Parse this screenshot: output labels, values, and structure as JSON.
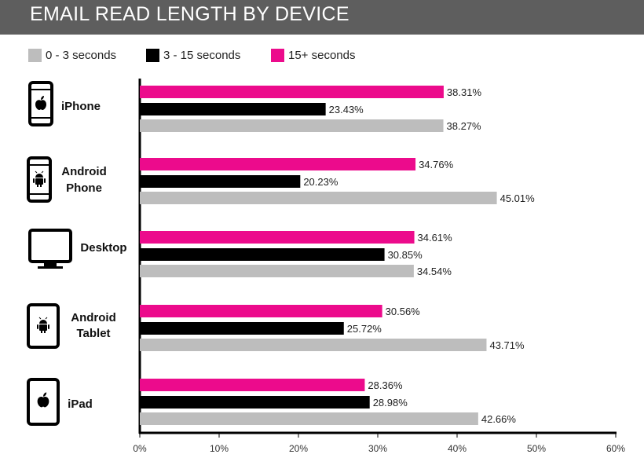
{
  "header": {
    "title": "EMAIL READ LENGTH BY DEVICE"
  },
  "colors": {
    "header_bg": "#5e5e5e",
    "series_0_3": "#bdbdbd",
    "series_3_15": "#000000",
    "series_15plus": "#ec0b8c"
  },
  "chart_data": {
    "type": "bar",
    "orientation": "horizontal",
    "title": "EMAIL READ LENGTH BY DEVICE",
    "categories": [
      {
        "lines": [
          "iPhone"
        ],
        "icon": "iphone-icon"
      },
      {
        "lines": [
          "Android",
          "Phone"
        ],
        "icon": "android-phone-icon"
      },
      {
        "lines": [
          "Desktop"
        ],
        "icon": "desktop-monitor-icon"
      },
      {
        "lines": [
          "Android",
          "Tablet"
        ],
        "icon": "android-tablet-icon"
      },
      {
        "lines": [
          "iPad"
        ],
        "icon": "ipad-icon"
      }
    ],
    "series": [
      {
        "name": "15+ seconds",
        "color": "#ec0b8c",
        "values": [
          38.31,
          34.76,
          34.61,
          30.56,
          28.36
        ],
        "labels": [
          "38.31%",
          "34.76%",
          "34.61%",
          "30.56%",
          "28.36%"
        ]
      },
      {
        "name": "3 - 15 seconds",
        "color": "#000000",
        "values": [
          23.43,
          20.23,
          30.85,
          25.72,
          28.98
        ],
        "labels": [
          "23.43%",
          "20.23%",
          "30.85%",
          "25.72%",
          "28.98%"
        ]
      },
      {
        "name": "0 - 3 seconds",
        "color": "#bdbdbd",
        "values": [
          38.27,
          45.01,
          34.54,
          43.71,
          42.66
        ],
        "labels": [
          "38.27%",
          "45.01%",
          "34.54%",
          "43.71%",
          "42.66%"
        ]
      }
    ],
    "legend": [
      {
        "name": "0 - 3 seconds",
        "color": "#bdbdbd"
      },
      {
        "name": "3 - 15 seconds",
        "color": "#000000"
      },
      {
        "name": "15+ seconds",
        "color": "#ec0b8c"
      }
    ],
    "xlim": [
      0,
      60
    ],
    "x_ticks": [
      0,
      10,
      20,
      30,
      40,
      50,
      60
    ],
    "x_tick_labels": [
      "0%",
      "10%",
      "20%",
      "30%",
      "40%",
      "50%",
      "60%"
    ],
    "legend_position": "top-left",
    "grid": false
  }
}
